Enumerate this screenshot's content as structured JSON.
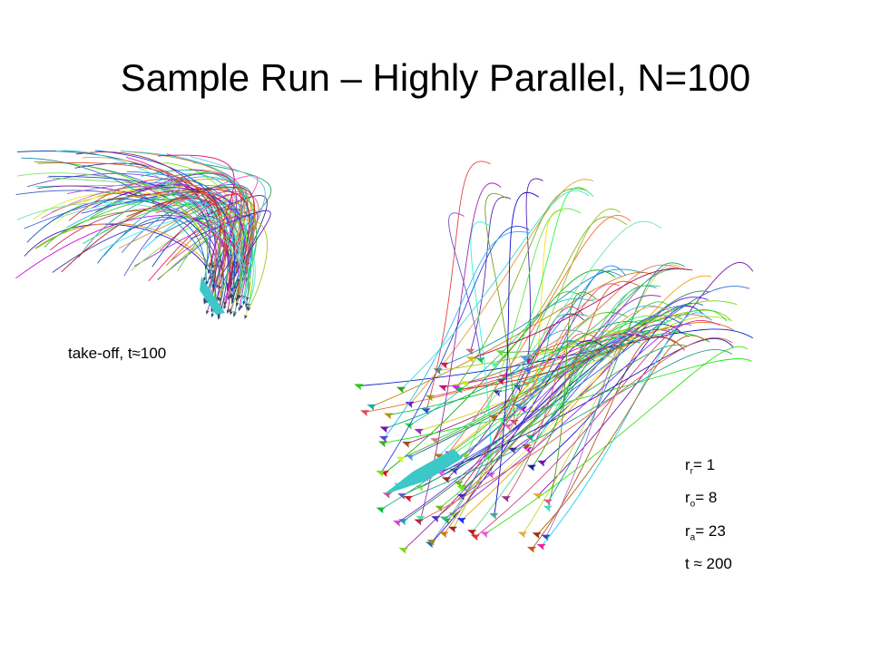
{
  "title": "Sample Run – Highly Parallel, N=100",
  "caption": "take-off, t≈100",
  "parameters": [
    {
      "symbol": "r",
      "subscript": "r",
      "rest": "= 1"
    },
    {
      "symbol": "r",
      "subscript": "o",
      "rest": "= 8"
    },
    {
      "symbol": "r",
      "subscript": "a",
      "rest": "= 23"
    },
    {
      "symbol": "t ≈ 200"
    }
  ]
}
